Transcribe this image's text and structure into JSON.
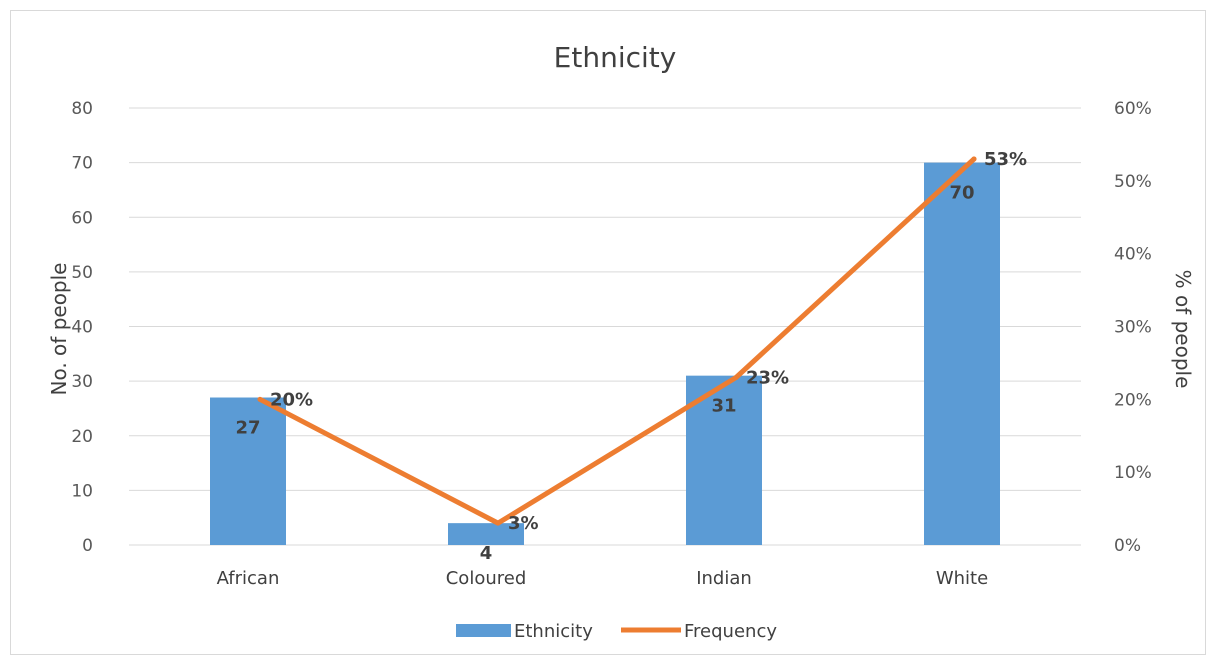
{
  "chart_data": {
    "type": "bar",
    "title": "Ethnicity",
    "categories": [
      "African",
      "Coloured",
      "Indian",
      "White"
    ],
    "series": [
      {
        "name": "Ethnicity",
        "type": "bar",
        "axis": "left",
        "values": [
          27,
          4,
          31,
          70
        ],
        "labels": [
          "27",
          "4",
          "31",
          "70"
        ],
        "color": "#5b9bd5"
      },
      {
        "name": "Frequency",
        "type": "line",
        "axis": "right",
        "values": [
          20,
          3,
          23,
          53
        ],
        "labels": [
          "20%",
          "3%",
          "23%",
          "53%"
        ],
        "color": "#ed7d31"
      }
    ],
    "y_left": {
      "label": "No. of people",
      "ylim": [
        0,
        80
      ],
      "ticks": [
        "0",
        "10",
        "20",
        "30",
        "40",
        "50",
        "60",
        "70",
        "80"
      ]
    },
    "y_right": {
      "label": "% of people",
      "ylim": [
        0,
        60
      ],
      "ticks": [
        "0%",
        "10%",
        "20%",
        "30%",
        "40%",
        "50%",
        "60%"
      ]
    },
    "grid": true,
    "legend": "bottom",
    "colors": {
      "grid": "#d9d9d9",
      "text": "#404040",
      "tick": "#595959"
    }
  }
}
